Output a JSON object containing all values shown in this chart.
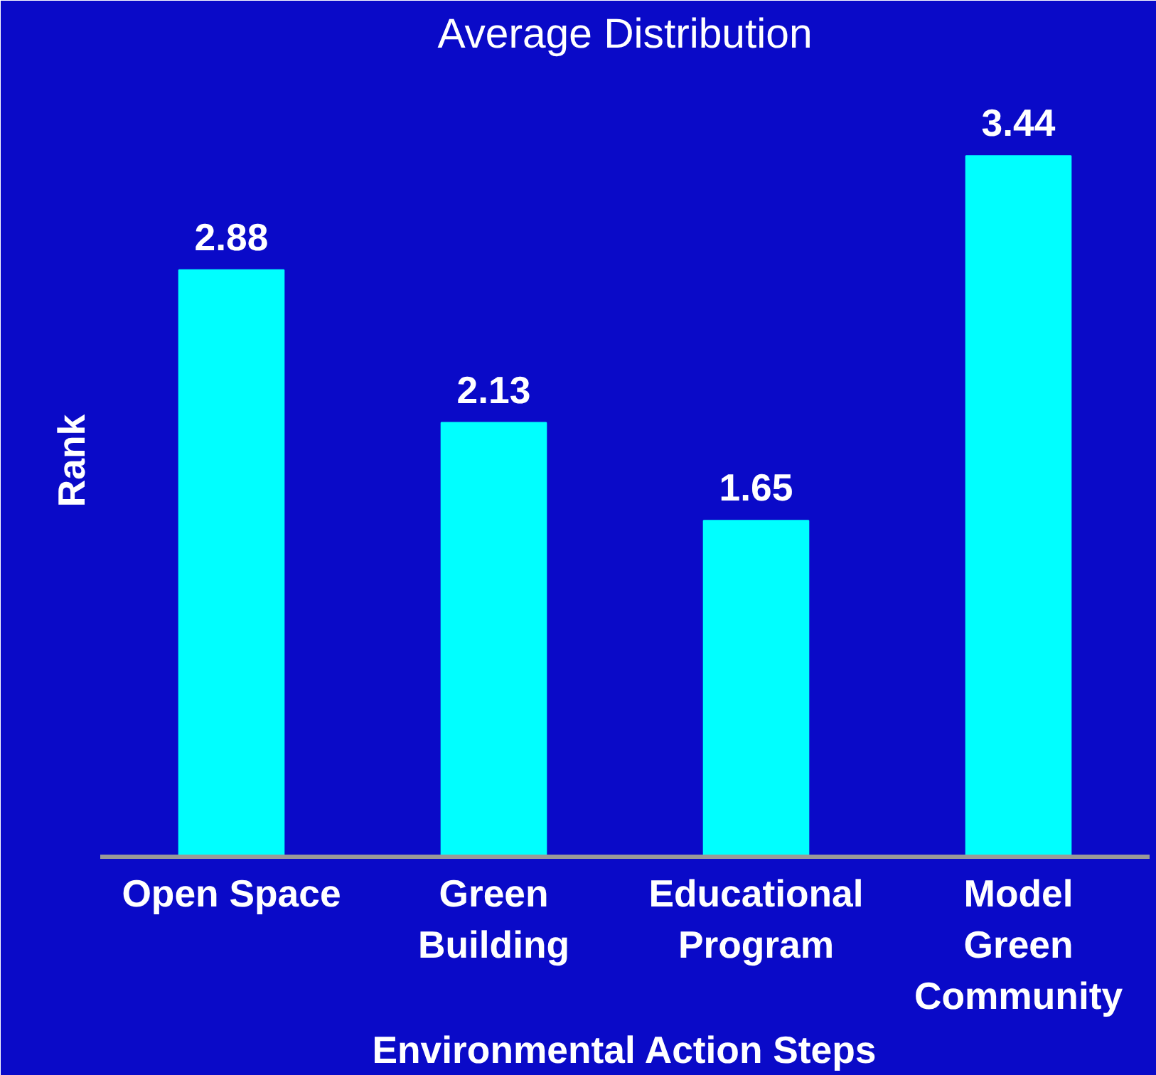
{
  "chart_data": {
    "type": "bar",
    "title": "Average Distribution",
    "xlabel": "Environmental Action Steps",
    "ylabel": "Rank",
    "categories": [
      "Open Space",
      "Green\nBuilding",
      "Educational\nProgram",
      "Model\nGreen\nCommunity"
    ],
    "values": [
      2.88,
      2.13,
      1.65,
      3.44
    ],
    "color": "#00ffff",
    "data_labels": true,
    "tick_labels": "x",
    "grid": false
  }
}
